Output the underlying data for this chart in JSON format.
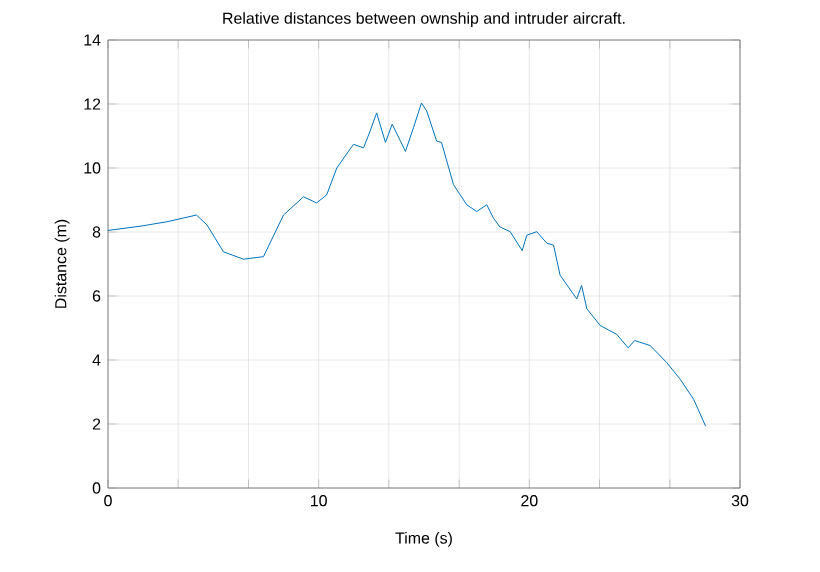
{
  "chart_data": {
    "type": "line",
    "title": "Relative distances between ownship and intruder aircraft.",
    "xlabel": "Time (s)",
    "ylabel": "Distance (m)",
    "x": [
      0,
      1.52,
      2.8,
      4.2,
      4.7,
      5.48,
      6.43,
      7.38,
      8.33,
      9.28,
      9.9,
      10.38,
      10.86,
      11.65,
      12.13,
      12.44,
      12.75,
      13.17,
      13.49,
      14.12,
      14.5,
      14.88,
      15.13,
      15.6,
      15.83,
      16.4,
      17.03,
      17.5,
      17.98,
      18.3,
      18.6,
      19.09,
      19.66,
      19.88,
      20.35,
      20.83,
      21.15,
      21.46,
      22.25,
      22.48,
      22.73,
      23.36,
      24.15,
      24.69,
      25.0,
      25.74,
      26.52,
      27.16,
      27.8,
      28.37
    ],
    "series": [
      {
        "color": "#0072bd",
        "values": [
          8.05,
          8.18,
          8.32,
          8.53,
          8.22,
          7.38,
          7.15,
          7.23,
          8.53,
          9.1,
          8.91,
          9.16,
          10.0,
          10.74,
          10.63,
          11.15,
          11.72,
          10.8,
          11.37,
          10.52,
          11.26,
          12.03,
          11.78,
          10.84,
          10.8,
          9.48,
          8.85,
          8.64,
          8.85,
          8.43,
          8.16,
          8.01,
          7.42,
          7.9,
          8.01,
          7.65,
          7.59,
          6.65,
          5.91,
          6.33,
          5.6,
          5.08,
          4.8,
          4.38,
          4.61,
          4.45,
          3.92,
          3.4,
          2.77,
          1.93
        ]
      }
    ],
    "xlim": [
      0,
      30
    ],
    "ylim": [
      0,
      14
    ],
    "xticks": [
      0,
      {
        "value": 3.33,
        "label": null
      },
      {
        "value": 6.67,
        "label": null
      },
      10,
      {
        "value": 13.33,
        "label": null
      },
      {
        "value": 16.67,
        "label": null
      },
      20,
      {
        "value": 23.33,
        "label": null
      },
      {
        "value": 26.67,
        "label": null
      },
      30
    ],
    "yticks": [
      0,
      2,
      4,
      6,
      8,
      10,
      12,
      14
    ],
    "grid": true,
    "marker": "none",
    "line_style": "solid"
  }
}
